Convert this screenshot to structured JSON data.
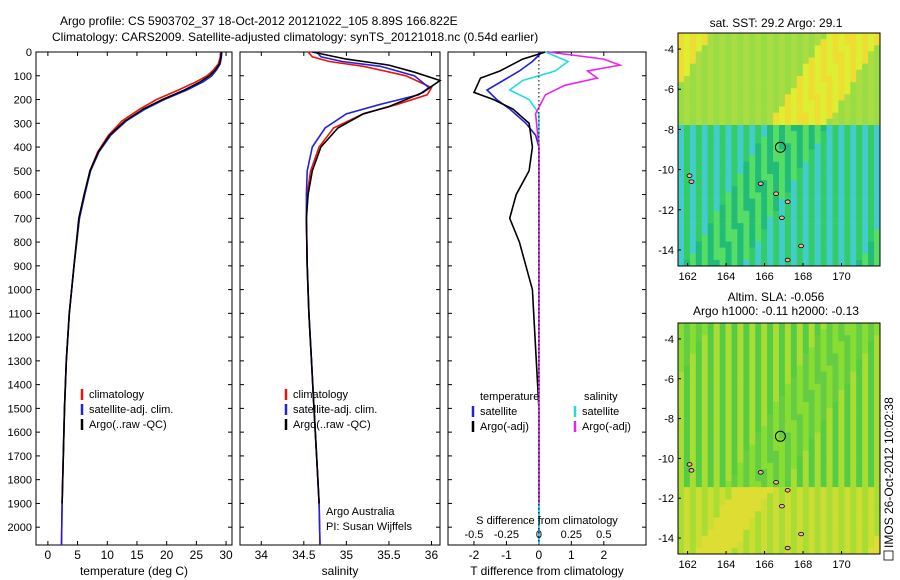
{
  "header": {
    "line1": "Argo profile: CS 5903702_37 18-Oct-2012 20121022_105 8.89S 166.822E",
    "line2": "Climatology: CARS2009. Satellite-adjusted climatology: synTS_20121018.nc (0.54d earlier)"
  },
  "side_label": "IMOS 26-Oct-2012 10:02:38",
  "colors": {
    "red": "#ee1111",
    "blue": "#2222dd",
    "black": "#000000",
    "cyan": "#22dddd",
    "magenta": "#ee22ee"
  },
  "chart_data": [
    {
      "id": "temperature",
      "type": "line",
      "xlabel": "temperature (deg C)",
      "xlim": [
        -2,
        31
      ],
      "xticks": [
        0,
        5,
        10,
        15,
        20,
        25,
        30
      ],
      "ylim": [
        0,
        2075
      ],
      "yticks": [
        0,
        100,
        200,
        300,
        400,
        500,
        600,
        700,
        800,
        900,
        1000,
        1100,
        1200,
        1300,
        1400,
        1500,
        1600,
        1700,
        1800,
        1900,
        2000
      ],
      "y_reversed": true,
      "legend": {
        "placement": "lower-middle",
        "entries": [
          "climatology",
          "satellite-adj. clim.",
          "Argo(..raw -QC)"
        ]
      },
      "series": [
        {
          "name": "climatology",
          "color": "#ee1111",
          "x": [
            29.1,
            29.0,
            28.7,
            27.9,
            26.8,
            25.0,
            22.0,
            18.3,
            15.5,
            12.5,
            10.2,
            8.4,
            7.1,
            6.2,
            5.3,
            4.4,
            3.6,
            3.1,
            2.8,
            2.6,
            2.4,
            2.3
          ],
          "y": [
            0,
            25,
            50,
            75,
            100,
            125,
            160,
            200,
            240,
            290,
            350,
            420,
            500,
            600,
            700,
            900,
            1100,
            1300,
            1500,
            1700,
            1900,
            2075
          ]
        },
        {
          "name": "satellite-adj. clim.",
          "color": "#2222dd",
          "x": [
            29.3,
            29.2,
            29.0,
            28.4,
            27.6,
            26.2,
            23.4,
            19.6,
            16.4,
            13.2,
            10.6,
            8.6,
            7.2,
            6.2,
            5.3,
            4.4,
            3.6,
            3.1,
            2.8,
            2.6,
            2.4,
            2.3
          ],
          "y": [
            0,
            25,
            50,
            75,
            100,
            125,
            160,
            200,
            240,
            290,
            350,
            420,
            500,
            600,
            700,
            900,
            1100,
            1300,
            1500,
            1700,
            1900,
            2075
          ]
        },
        {
          "name": "Argo(..raw -QC)",
          "color": "#000000",
          "x": [
            29.2,
            29.1,
            28.9,
            28.2,
            27.2,
            25.7,
            23.0,
            19.3,
            16.1,
            13.0,
            10.4,
            8.5,
            7.1,
            6.1,
            5.2,
            4.4,
            3.6,
            3.1,
            2.8,
            2.6,
            2.4
          ],
          "y": [
            0,
            25,
            50,
            75,
            100,
            125,
            160,
            200,
            240,
            290,
            350,
            420,
            500,
            600,
            700,
            900,
            1100,
            1300,
            1500,
            1700,
            1900
          ]
        }
      ],
      "annotations": []
    },
    {
      "id": "salinity",
      "type": "line",
      "xlabel": "salinity",
      "xlim": [
        33.75,
        36.1
      ],
      "xticks": [
        34,
        34.5,
        35,
        35.5,
        36
      ],
      "xtick_labels": [
        "34",
        "34.5",
        "35",
        "35.5",
        "36"
      ],
      "ylim": [
        0,
        2075
      ],
      "y_reversed": true,
      "legend": {
        "placement": "lower-middle",
        "entries": [
          "climatology",
          "satellite-adj. clim.",
          "Argo(..raw -QC)"
        ]
      },
      "series": [
        {
          "name": "climatology",
          "color": "#ee1111",
          "x": [
            34.55,
            34.6,
            34.8,
            35.2,
            35.7,
            36.0,
            35.95,
            35.6,
            35.2,
            34.85,
            34.68,
            34.58,
            34.54,
            34.53,
            34.54,
            34.56,
            34.59,
            34.62,
            34.65,
            34.68,
            34.69
          ],
          "y": [
            0,
            20,
            40,
            60,
            100,
            150,
            180,
            220,
            260,
            320,
            400,
            500,
            600,
            700,
            900,
            1100,
            1300,
            1500,
            1700,
            1900,
            2075
          ]
        },
        {
          "name": "satellite-adj. clim.",
          "color": "#2222dd",
          "x": [
            34.65,
            34.7,
            34.95,
            35.4,
            35.8,
            35.97,
            35.85,
            35.4,
            35.0,
            34.75,
            34.6,
            34.54,
            34.53,
            34.53,
            34.54,
            34.56,
            34.59,
            34.62,
            34.65,
            34.68,
            34.69
          ],
          "y": [
            0,
            20,
            40,
            60,
            100,
            150,
            180,
            220,
            260,
            320,
            400,
            500,
            600,
            700,
            900,
            1100,
            1300,
            1500,
            1700,
            1900,
            2075
          ]
        },
        {
          "name": "Argo(..raw -QC)",
          "color": "#000000",
          "x": [
            34.6,
            35.0,
            35.5,
            35.8,
            36.1,
            35.9,
            35.7,
            35.5,
            35.2,
            34.9,
            34.7,
            34.6,
            34.55,
            34.53,
            34.54,
            34.56,
            34.59,
            34.62,
            34.65,
            34.68
          ],
          "y": [
            0,
            30,
            55,
            85,
            120,
            170,
            200,
            230,
            260,
            320,
            400,
            500,
            600,
            700,
            900,
            1100,
            1300,
            1500,
            1700,
            1900
          ]
        }
      ],
      "annotations": [
        "Argo Australia",
        "PI: Susan Wijffels"
      ]
    },
    {
      "id": "difference",
      "type": "line",
      "xlabel": "T difference from climatology",
      "xlabel_top": "S difference from climatology",
      "xlim": [
        -2.8,
        3.3
      ],
      "xticks": [
        -2,
        -1,
        0,
        1,
        2
      ],
      "xticks_S": [
        -0.5,
        -0.25,
        0,
        0.25,
        0.5
      ],
      "xtick_labels_S": [
        "-0.5",
        "-0.25",
        "0",
        "0.25",
        "0.5"
      ],
      "ylim": [
        0,
        2075
      ],
      "y_reversed": true,
      "legend": {
        "placement": "lower-middle",
        "headers": [
          "temperature",
          "salinity"
        ],
        "entries": [
          "satellite",
          "Argo(-adj)",
          "satellite",
          "Argo(-adj)"
        ]
      },
      "series": [
        {
          "name": "satellite",
          "group": "temperature",
          "color": "#2222dd",
          "x": [
            0.1,
            -0.2,
            -0.6,
            -1.1,
            -1.6,
            -1.3,
            -0.9,
            -0.4,
            -0.1,
            0.0,
            0.0,
            0.0,
            0.0,
            0.0,
            0.0
          ],
          "y": [
            0,
            40,
            80,
            120,
            160,
            200,
            240,
            300,
            350,
            400,
            500,
            700,
            1000,
            1500,
            2075
          ]
        },
        {
          "name": "Argo(-adj)",
          "group": "temperature",
          "color": "#000000",
          "x": [
            0.2,
            -0.5,
            -1.2,
            -1.8,
            -2.0,
            -1.4,
            -0.8,
            -0.3,
            -0.2,
            -0.3,
            -0.7,
            -0.9,
            -0.6,
            -0.2,
            0.0,
            0.0
          ],
          "y": [
            0,
            30,
            80,
            110,
            170,
            200,
            240,
            300,
            400,
            500,
            600,
            700,
            800,
            1000,
            1500,
            1900
          ]
        },
        {
          "name": "satellite",
          "group": "salinity",
          "color": "#22dddd",
          "x": [
            0.2,
            0.9,
            0.5,
            -0.5,
            -0.9,
            -0.3,
            0.0,
            0.0,
            0.0,
            0.0
          ],
          "y": [
            0,
            40,
            80,
            120,
            160,
            200,
            260,
            400,
            800,
            2075
          ]
        },
        {
          "name": "Argo(-adj)",
          "group": "salinity",
          "color": "#ee22ee",
          "x": [
            0.3,
            2.0,
            2.5,
            1.5,
            1.8,
            0.8,
            0.2,
            -0.1,
            0.0,
            0.0,
            0.0
          ],
          "y": [
            0,
            30,
            55,
            80,
            110,
            140,
            180,
            260,
            400,
            800,
            1900
          ]
        }
      ],
      "annotations": []
    },
    {
      "id": "sst_map",
      "type": "heatmap",
      "title": "sat. SST: 29.2 Argo: 29.1",
      "xlim": [
        161.5,
        172
      ],
      "xticks": [
        162,
        164,
        166,
        168,
        170
      ],
      "ylim": [
        -14.8,
        -3.2
      ],
      "yticks": [
        -4,
        -6,
        -8,
        -10,
        -12,
        -14
      ],
      "marker": {
        "lon": 166.822,
        "lat": -8.89
      },
      "regions": [
        {
          "label": "north",
          "colors": [
            "#aadd44",
            "#ddee33",
            "#eedd33",
            "#99dd44"
          ]
        },
        {
          "label": "south",
          "colors": [
            "#33cc66",
            "#22bb77",
            "#55dd66",
            "#44cccc"
          ]
        }
      ]
    },
    {
      "id": "sla_map",
      "type": "heatmap",
      "title": "Altim. SLA: -0.056",
      "subtitle": "Argo h1000: -0.11 h2000: -0.13",
      "xlim": [
        161.5,
        172
      ],
      "xticks": [
        162,
        164,
        166,
        168,
        170
      ],
      "ylim": [
        -14.8,
        -3.2
      ],
      "yticks": [
        -4,
        -6,
        -8,
        -10,
        -12,
        -14
      ],
      "marker": {
        "lon": 166.822,
        "lat": -8.89
      },
      "regions": [
        {
          "label": "main",
          "colors": [
            "#55cc44",
            "#66cc44",
            "#88dd33",
            "#aadd33"
          ]
        },
        {
          "label": "south",
          "colors": [
            "#ccdd33",
            "#dddd33",
            "#aadd33"
          ]
        }
      ]
    }
  ]
}
